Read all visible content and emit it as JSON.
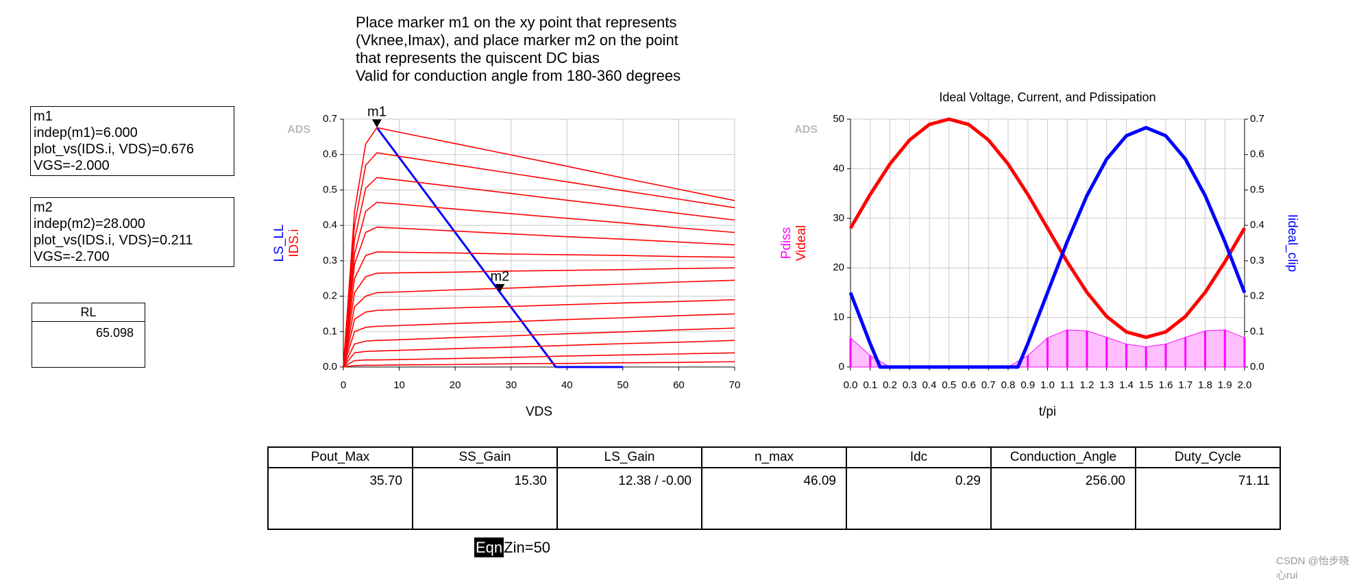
{
  "note": [
    "Place marker m1 on the xy point that represents",
    "(Vknee,Imax), and place marker m2 on the point",
    "that represents the quiscent DC bias",
    "Valid for conduction angle from 180-360 degrees"
  ],
  "marker_boxes": [
    {
      "lines": [
        "m1",
        "indep(m1)=6.000",
        "plot_vs(IDS.i, VDS)=0.676",
        "VGS=-2.000"
      ]
    },
    {
      "lines": [
        "m2",
        "indep(m2)=28.000",
        "plot_vs(IDS.i, VDS)=0.211",
        "VGS=-2.700"
      ]
    }
  ],
  "rl": {
    "header": "RL",
    "value": "65.098"
  },
  "chart_data": [
    {
      "type": "line",
      "watermark": "ADS",
      "xlabel": "VDS",
      "grid": true,
      "x": [
        0,
        2,
        4,
        6,
        10,
        20,
        30,
        40,
        50,
        60,
        70
      ],
      "xlim": [
        0,
        70
      ],
      "xticks": [
        0,
        10,
        20,
        30,
        40,
        50,
        60,
        70
      ],
      "ylim": [
        0,
        0.7
      ],
      "yticks": [
        {
          "value": 0,
          "label": "0.0"
        },
        0.1,
        0.2,
        0.3,
        0.4,
        0.5,
        0.6,
        0.7
      ],
      "markers": [
        {
          "label": "m1",
          "x": 6,
          "y": 0.676
        },
        {
          "label": "m2",
          "x": 28,
          "y": 0.211
        }
      ],
      "series": [
        {
          "name": "LS_LL",
          "color": "#0000ff",
          "x": [
            6,
            38,
            50
          ],
          "values": [
            0.676,
            0,
            0
          ]
        },
        {
          "name": "IDS.i",
          "color": "#ff0000",
          "values": [
            0,
            0.44,
            0.63,
            0.676,
            0.663,
            0.631,
            0.599,
            0.567,
            0.534,
            0.502,
            0.47
          ]
        },
        {
          "color": "#ff0000",
          "values": [
            0,
            0.4,
            0.57,
            0.605,
            0.595,
            0.571,
            0.547,
            0.523,
            0.498,
            0.474,
            0.45
          ]
        },
        {
          "color": "#ff0000",
          "values": [
            0,
            0.36,
            0.505,
            0.535,
            0.528,
            0.509,
            0.49,
            0.471,
            0.453,
            0.434,
            0.415
          ]
        },
        {
          "color": "#ff0000",
          "values": [
            0,
            0.32,
            0.44,
            0.465,
            0.46,
            0.446,
            0.433,
            0.42,
            0.407,
            0.393,
            0.38
          ]
        },
        {
          "color": "#ff0000",
          "values": [
            0,
            0.29,
            0.38,
            0.395,
            0.392,
            0.384,
            0.376,
            0.368,
            0.361,
            0.353,
            0.345
          ]
        },
        {
          "color": "#ff0000",
          "values": [
            0,
            0.25,
            0.315,
            0.325,
            0.324,
            0.322,
            0.319,
            0.317,
            0.315,
            0.312,
            0.31
          ]
        },
        {
          "color": "#ff0000",
          "values": [
            0,
            0.21,
            0.255,
            0.265,
            0.266,
            0.268,
            0.271,
            0.273,
            0.275,
            0.278,
            0.28
          ]
        },
        {
          "color": "#ff0000",
          "values": [
            0,
            0.17,
            0.2,
            0.21,
            0.212,
            0.218,
            0.223,
            0.229,
            0.234,
            0.24,
            0.245
          ]
        },
        {
          "color": "#ff0000",
          "values": [
            0,
            0.135,
            0.155,
            0.16,
            0.162,
            0.167,
            0.171,
            0.176,
            0.181,
            0.185,
            0.19
          ]
        },
        {
          "color": "#ff0000",
          "values": [
            0,
            0.1,
            0.112,
            0.115,
            0.117,
            0.123,
            0.128,
            0.134,
            0.139,
            0.145,
            0.15
          ]
        },
        {
          "color": "#ff0000",
          "values": [
            0,
            0.065,
            0.073,
            0.075,
            0.077,
            0.083,
            0.088,
            0.094,
            0.099,
            0.105,
            0.11
          ]
        },
        {
          "color": "#ff0000",
          "values": [
            0,
            0.04,
            0.044,
            0.045,
            0.047,
            0.052,
            0.056,
            0.061,
            0.066,
            0.07,
            0.075
          ]
        },
        {
          "color": "#ff0000",
          "values": [
            0,
            0.018,
            0.02,
            0.02,
            0.021,
            0.024,
            0.027,
            0.031,
            0.034,
            0.037,
            0.04
          ]
        },
        {
          "color": "#ff0000",
          "values": [
            0,
            0.004,
            0.005,
            0.005,
            0.006,
            0.007,
            0.009,
            0.01,
            0.012,
            0.013,
            0.015
          ]
        }
      ]
    },
    {
      "type": "line",
      "title": "Ideal Voltage, Current, and Pdissipation",
      "watermark": "ADS",
      "xlabel": "t/pi",
      "grid": true,
      "x": [
        0,
        0.1,
        0.2,
        0.3,
        0.4,
        0.5,
        0.6,
        0.7,
        0.8,
        0.9,
        1,
        1.1,
        1.2,
        1.3,
        1.4,
        1.5,
        1.6,
        1.7,
        1.8,
        1.9,
        2
      ],
      "xlim": [
        0,
        2
      ],
      "xticks": [
        {
          "value": 0,
          "label": "0.0"
        },
        0.1,
        0.2,
        0.3,
        0.4,
        0.5,
        0.6,
        0.7,
        0.8,
        0.9,
        {
          "value": 1,
          "label": "1.0"
        },
        1.1,
        1.2,
        1.3,
        1.4,
        1.5,
        1.6,
        1.7,
        1.8,
        1.9,
        {
          "value": 2,
          "label": "2.0"
        }
      ],
      "ylim": [
        0,
        50
      ],
      "yticks": [
        0,
        10,
        20,
        30,
        40,
        50
      ],
      "y2lim": [
        0,
        0.7
      ],
      "y2ticks": [
        {
          "value": 0,
          "label": "0.0"
        },
        0.1,
        0.2,
        0.3,
        0.4,
        0.5,
        0.6,
        0.7
      ],
      "series": [
        {
          "name": "Pdiss",
          "color": "#ff00ff",
          "mark": "stem",
          "values": [
            5.88,
            2.3,
            0,
            0,
            0,
            0,
            0,
            0,
            0,
            2.3,
            5.88,
            7.5,
            7.29,
            5.99,
            4.62,
            4.06,
            4.62,
            5.99,
            7.29,
            7.5,
            5.88
          ]
        },
        {
          "name": "Videal",
          "color": "#ff0000",
          "values": [
            28,
            34.8,
            40.94,
            45.8,
            48.92,
            50,
            48.92,
            45.8,
            40.94,
            34.8,
            28,
            21.2,
            15.06,
            10.2,
            7.08,
            6,
            7.08,
            10.2,
            15.06,
            21.2,
            28
          ]
        },
        {
          "name": "Iideal_clip",
          "color": "#0000ff",
          "axis": "y2",
          "x": [
            0,
            0.1,
            0.15,
            0.85,
            0.9,
            1,
            1.1,
            1.2,
            1.3,
            1.4,
            1.5,
            1.6,
            1.7,
            1.8,
            1.9,
            2
          ],
          "values": [
            0.21,
            0.066,
            0,
            0,
            0.066,
            0.21,
            0.354,
            0.484,
            0.587,
            0.653,
            0.676,
            0.653,
            0.587,
            0.484,
            0.354,
            0.21
          ]
        }
      ]
    }
  ],
  "table": {
    "headers": [
      "Pout_Max",
      "SS_Gain",
      "LS_Gain",
      "n_max",
      "Idc",
      "Conduction_Angle",
      "Duty_Cycle"
    ],
    "rows": [
      [
        "35.70",
        "15.30",
        "12.38 / -0.00",
        "46.09",
        "0.29",
        "256.00",
        "71.11"
      ]
    ]
  },
  "eqn": {
    "tag": "Eqn",
    "text": "Zin=50"
  },
  "footer": "CSDN @怡步晓心rui"
}
